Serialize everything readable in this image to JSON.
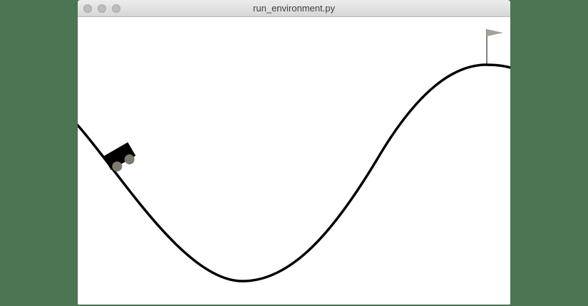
{
  "window": {
    "title": "run_environment.py",
    "buttons": [
      "close",
      "minimize",
      "zoom"
    ]
  },
  "environment": {
    "track_color": "#000000",
    "car_body_color": "#000000",
    "car_wheel_color": "#7f7a70",
    "flag_color": "#a89f95",
    "flag_pole_color": "#000000",
    "icons": [
      "mountain-track",
      "car",
      "goal-flag"
    ]
  }
}
